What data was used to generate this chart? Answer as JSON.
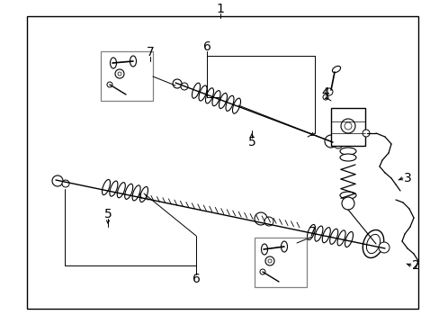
{
  "bg_color": "#ffffff",
  "line_color": "#000000",
  "gray_color": "#808080",
  "fig_width": 4.89,
  "fig_height": 3.6,
  "dpi": 100
}
